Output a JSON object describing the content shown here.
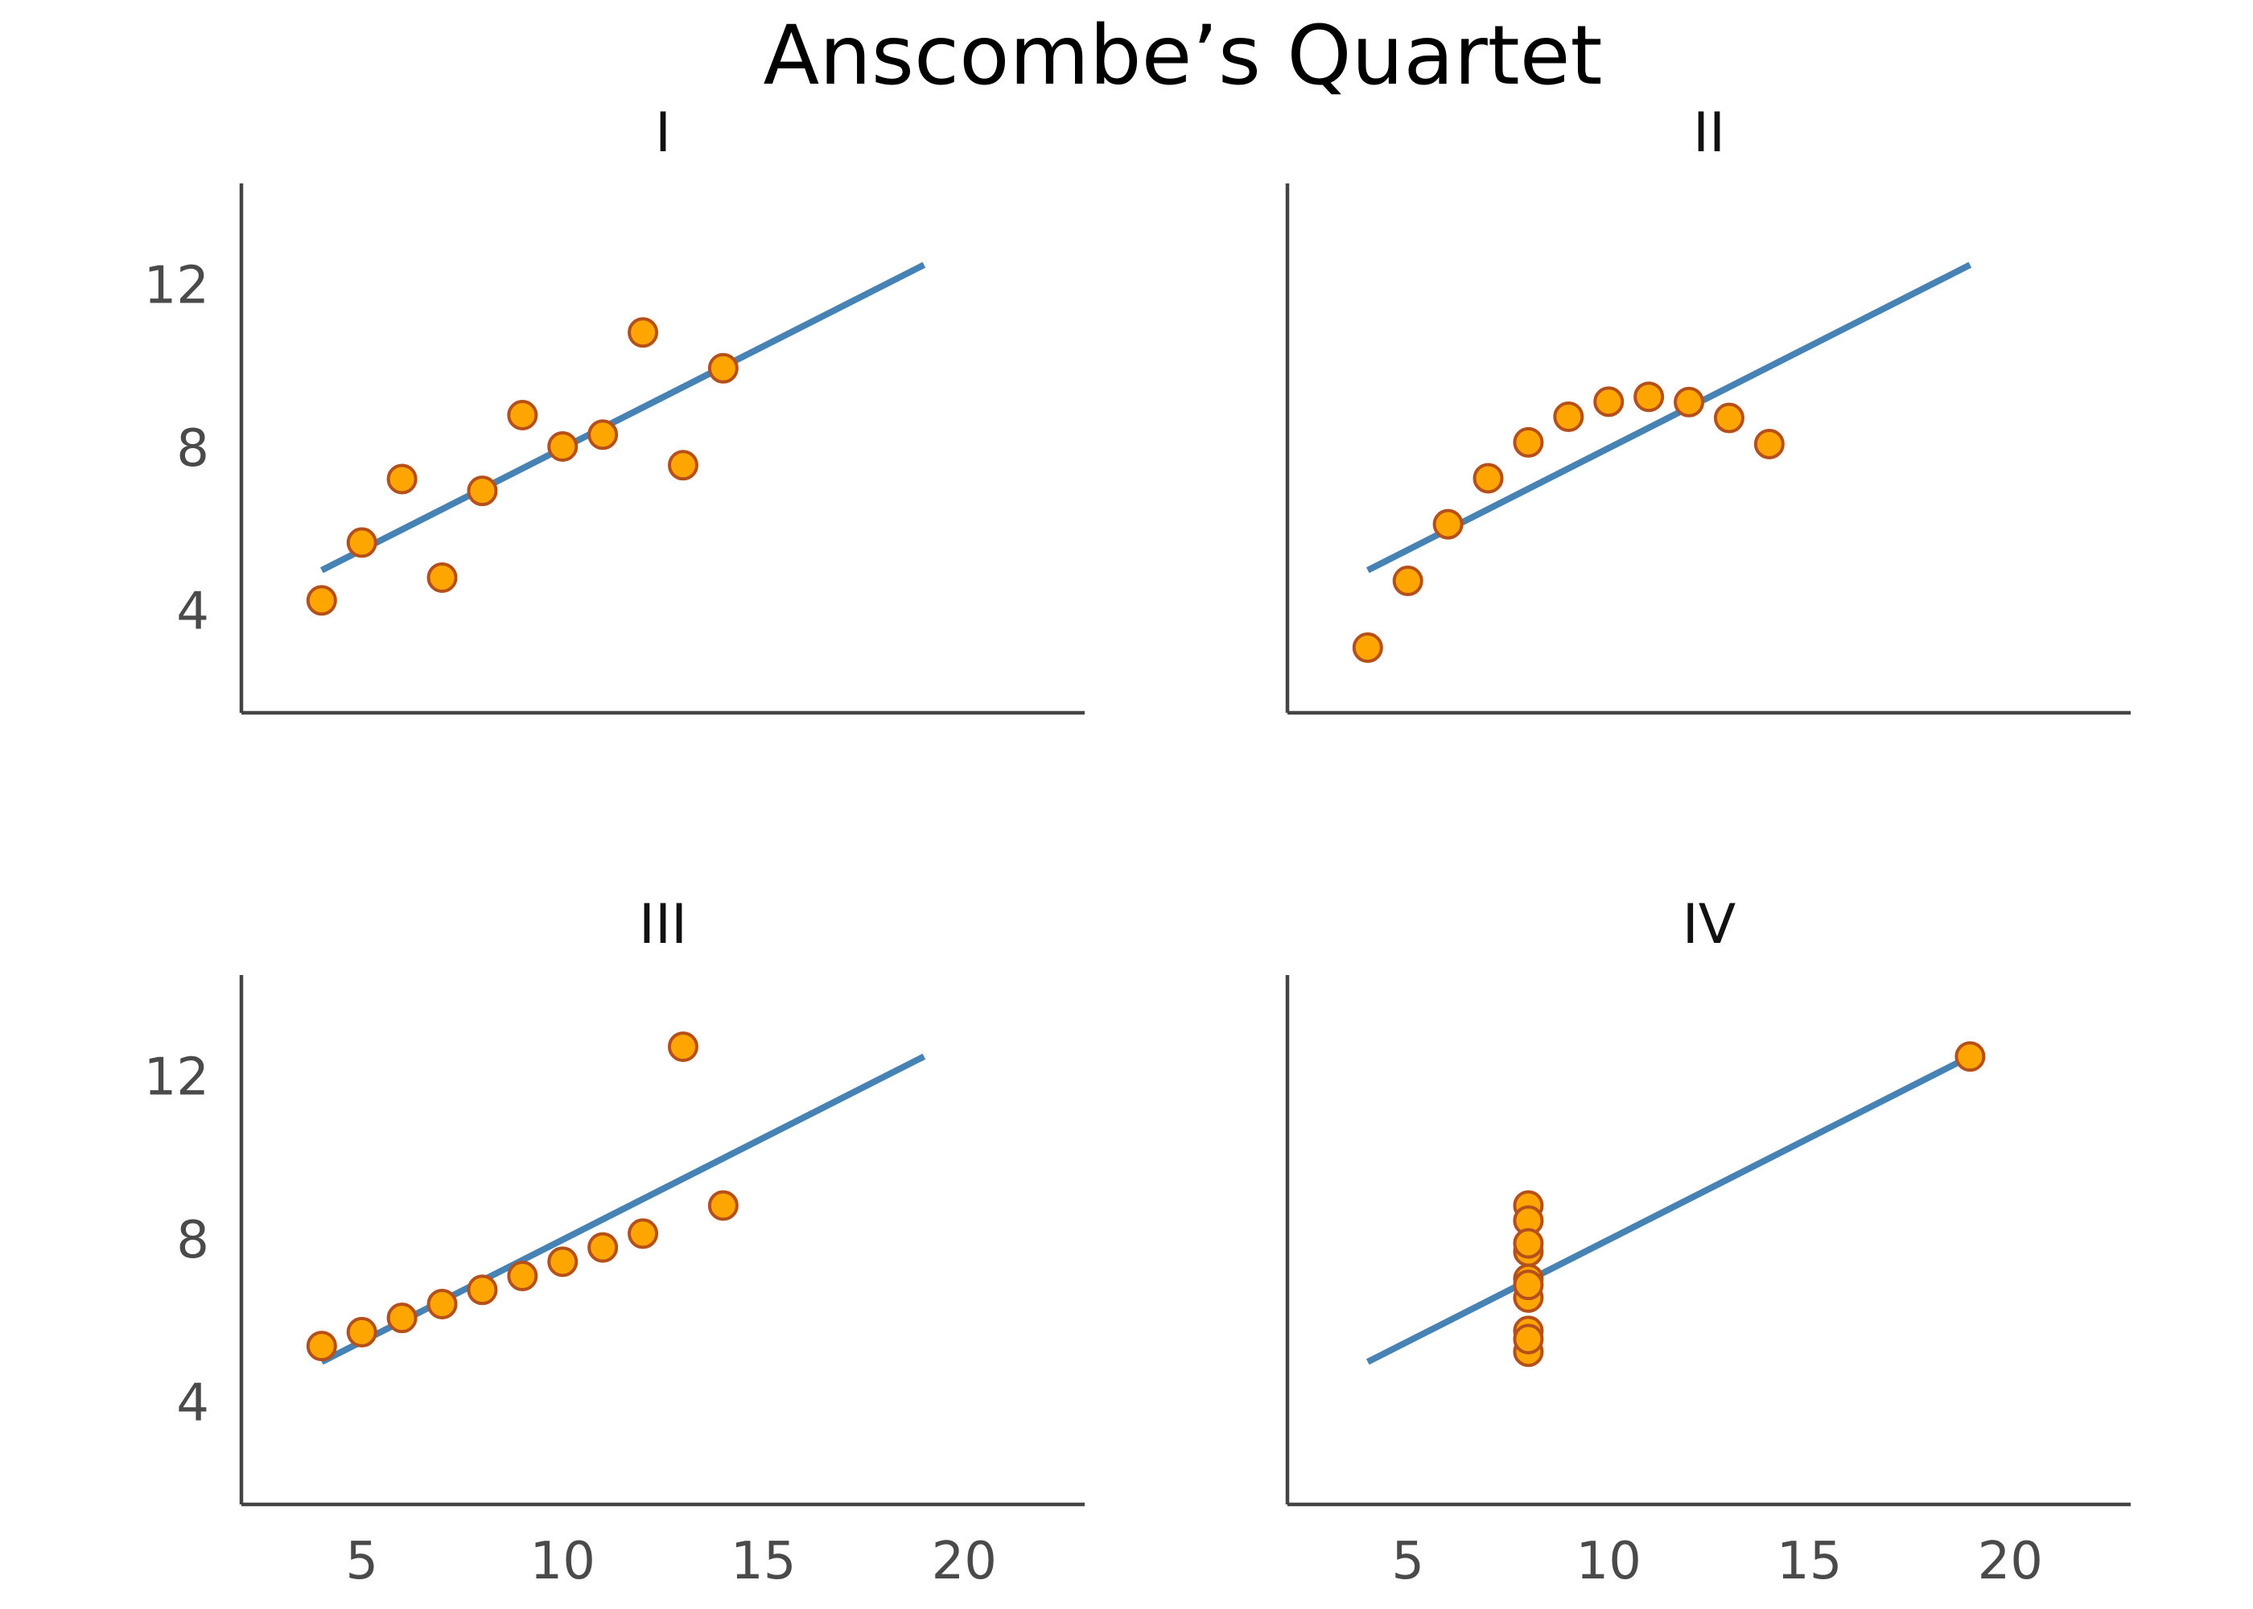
{
  "chart_data": {
    "title": "Anscombe’s Quartet",
    "type": "scatter",
    "grid": false,
    "xlim": [
      2,
      23
    ],
    "ylim": [
      1.5,
      14.5
    ],
    "xticks": [
      5,
      10,
      15,
      20
    ],
    "yticks": [
      4,
      8,
      12
    ],
    "colors": {
      "points": "#ffa500",
      "point_edge": "#b5501a",
      "line": "#4682b4",
      "axes": "#444444"
    },
    "fit_line": {
      "x": [
        4,
        19
      ],
      "y": [
        5.0,
        12.5
      ]
    },
    "panels": [
      {
        "title": "I",
        "x": [
          10,
          8,
          13,
          9,
          11,
          14,
          6,
          4,
          12,
          7,
          5
        ],
        "y": [
          8.04,
          6.95,
          7.58,
          8.81,
          8.33,
          9.96,
          7.24,
          4.26,
          10.84,
          4.82,
          5.68
        ]
      },
      {
        "title": "II",
        "x": [
          10,
          8,
          13,
          9,
          11,
          14,
          6,
          4,
          12,
          7,
          5
        ],
        "y": [
          9.14,
          8.14,
          8.74,
          8.77,
          9.26,
          8.1,
          6.13,
          3.1,
          9.13,
          7.26,
          4.74
        ]
      },
      {
        "title": "III",
        "x": [
          10,
          8,
          13,
          9,
          11,
          14,
          6,
          4,
          12,
          7,
          5
        ],
        "y": [
          7.46,
          6.77,
          12.74,
          7.11,
          7.81,
          8.84,
          6.08,
          5.39,
          8.15,
          6.42,
          5.73
        ]
      },
      {
        "title": "IV",
        "x": [
          8,
          8,
          8,
          8,
          8,
          8,
          8,
          19,
          8,
          8,
          8
        ],
        "y": [
          6.58,
          5.76,
          7.71,
          8.84,
          8.47,
          7.04,
          5.25,
          12.5,
          5.56,
          7.91,
          6.89
        ]
      }
    ]
  }
}
